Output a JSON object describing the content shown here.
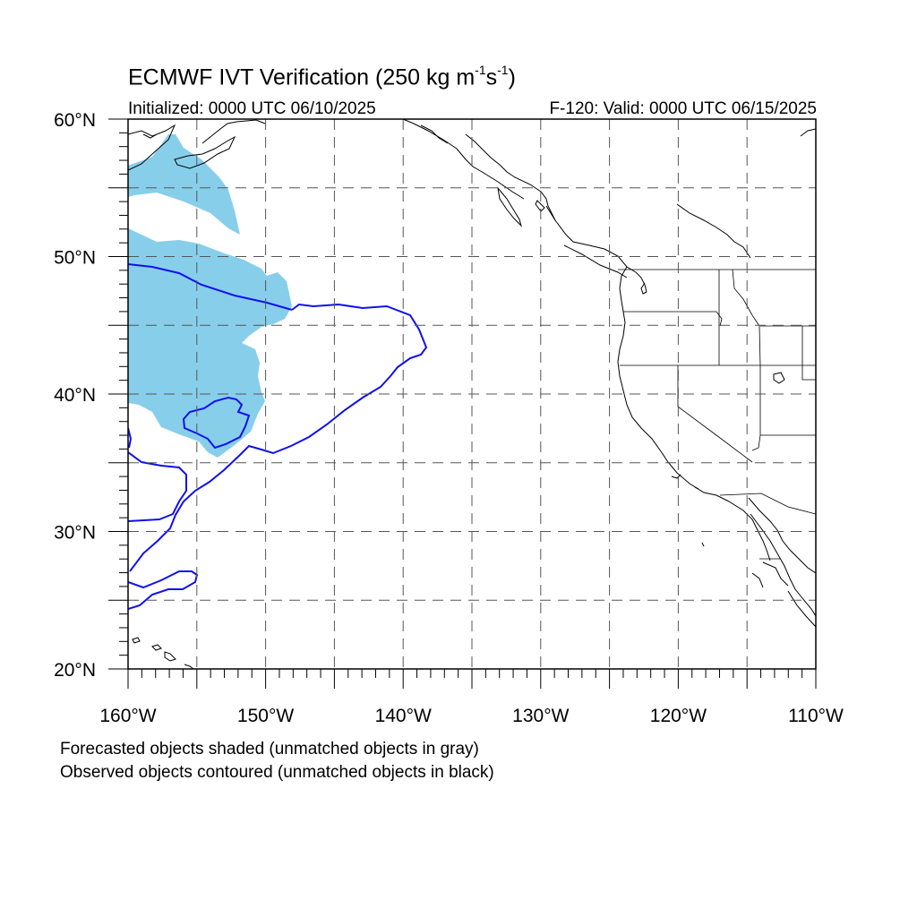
{
  "title": {
    "main_prefix": "ECMWF IVT Verification (250 kg m",
    "exp1": "-1",
    "mid": "s",
    "exp2": "-1",
    "suffix": ")"
  },
  "initialized": "Initialized: 0000 UTC 06/10/2025",
  "valid": "F-120: Valid: 0000 UTC 06/15/2025",
  "captions": {
    "forecast": "Forecasted objects shaded (unmatched objects in gray)",
    "observed": "Observed objects contoured (unmatched objects in black)"
  },
  "map": {
    "lon_range": [
      -160,
      -110
    ],
    "lat_range": [
      20,
      60
    ],
    "lon_ticks": [
      "160°W",
      "150°W",
      "140°W",
      "130°W",
      "120°W",
      "110°W"
    ],
    "lat_ticks": [
      "20°N",
      "30°N",
      "40°N",
      "50°N",
      "60°N"
    ],
    "grid_spacing_deg": 5,
    "grid": true,
    "colors": {
      "forecast_fill": "#87ceeb",
      "observed_contour": "#1010ee",
      "coastline": "#000000",
      "grid": "#555555"
    }
  }
}
